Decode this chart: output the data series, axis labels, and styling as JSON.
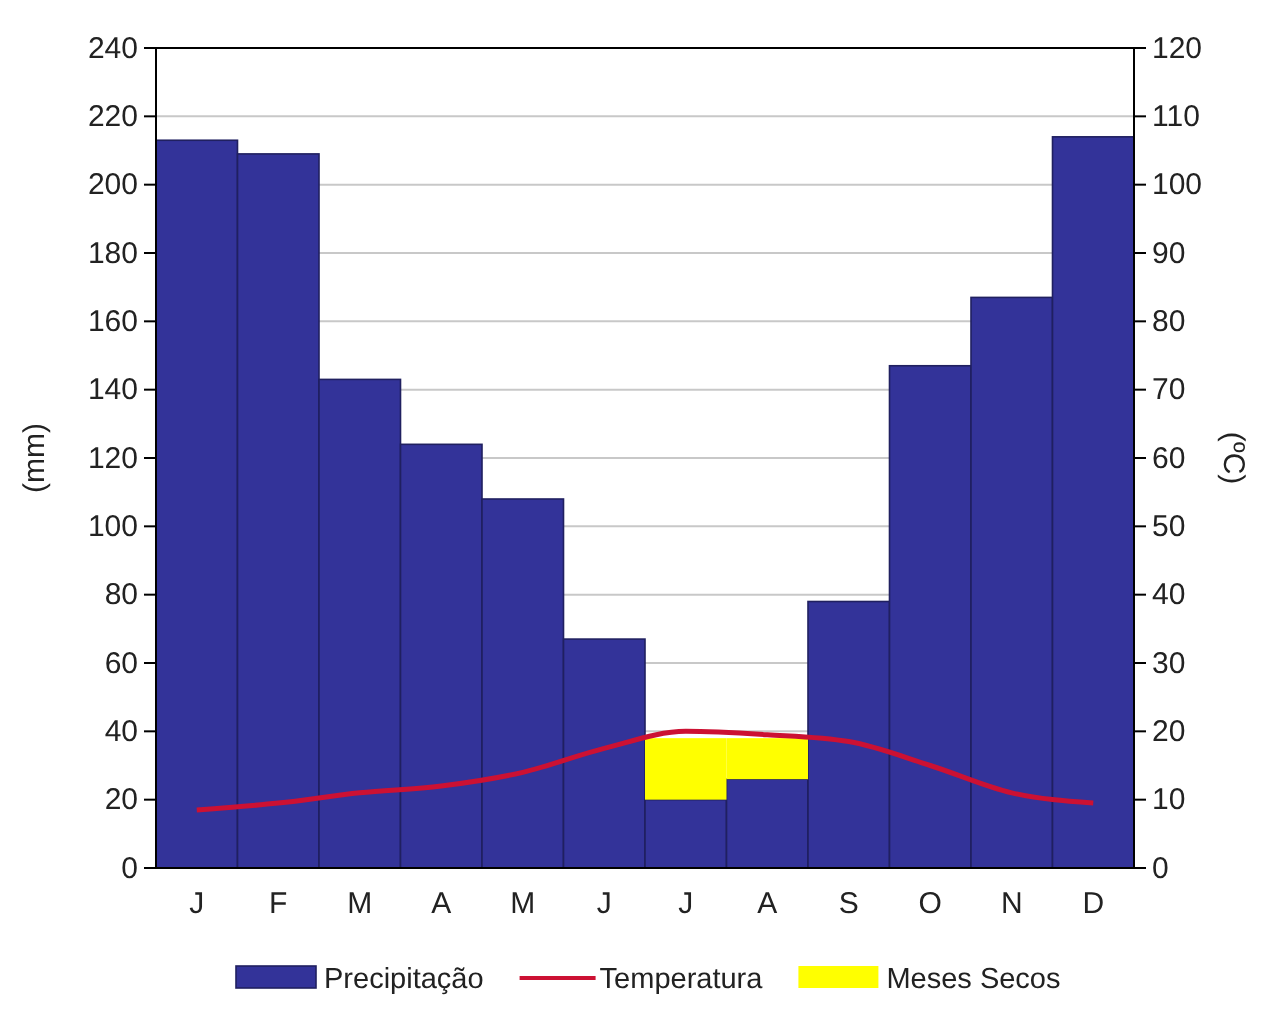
{
  "chart_data": {
    "type": "bar",
    "stacked": true,
    "categories": [
      "J",
      "F",
      "M",
      "A",
      "M",
      "J",
      "J",
      "A",
      "S",
      "O",
      "N",
      "D"
    ],
    "series": [
      {
        "name": "Precipitação",
        "color": "#333399",
        "values": [
          213,
          209,
          143,
          124,
          108,
          67,
          20,
          26,
          78,
          147,
          167,
          214
        ]
      },
      {
        "name": "Temperatura",
        "type": "line",
        "axis": "y2",
        "color": "#cc1133",
        "values": [
          8.5,
          9.5,
          11,
          12,
          14,
          17.5,
          20,
          19.5,
          18.5,
          15,
          11,
          9.5
        ]
      },
      {
        "name": "Meses Secos",
        "color": "#ffff00",
        "values": [
          null,
          null,
          null,
          null,
          null,
          null,
          18,
          12,
          null,
          null,
          null,
          null
        ]
      }
    ],
    "ylabel": "(mm)",
    "y2label": "(ºC)",
    "ylim": [
      0,
      240
    ],
    "yticks": [
      0,
      20,
      40,
      60,
      80,
      100,
      120,
      140,
      160,
      180,
      200,
      220,
      240
    ],
    "y2lim": [
      0,
      120
    ],
    "y2ticks": [
      0,
      10,
      20,
      30,
      40,
      50,
      60,
      70,
      80,
      90,
      100,
      110,
      120
    ],
    "grid": "y",
    "legend": "bottom",
    "line_style": "solid",
    "marker": "none"
  }
}
